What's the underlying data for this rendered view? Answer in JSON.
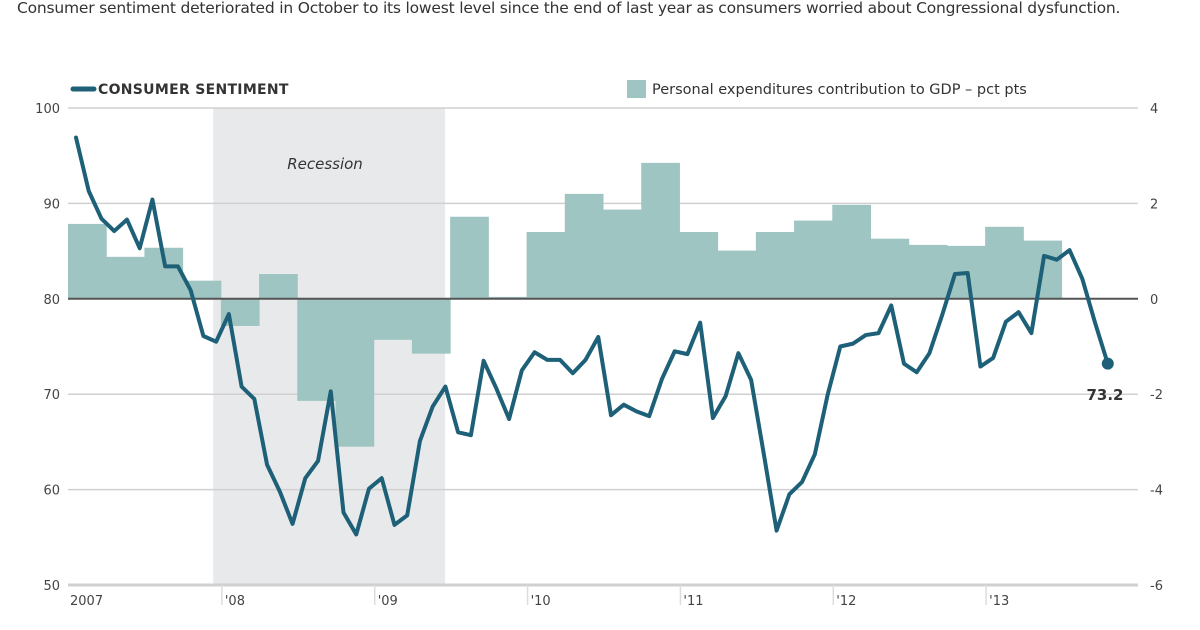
{
  "subtitle": "Consumer sentiment deteriorated in October to its lowest level since the end of last year as consumers worried about Congressional dysfunction.",
  "colors": {
    "line": "#1d6078",
    "bars": "#9ec5c1",
    "recession": "#e8e9eb",
    "grid": "#d0d0d0",
    "zero": "#555555"
  },
  "chart_data": {
    "type": "line+bar",
    "title": "",
    "legend": [
      {
        "name": "CONSUMER SENTIMENT",
        "marker": "line",
        "position": "top-left"
      },
      {
        "name": "Personal expenditures contribution to GDP – pct pts",
        "marker": "square",
        "position": "top-right"
      }
    ],
    "left_axis": {
      "label": "",
      "range": [
        50,
        100
      ],
      "ticks": [
        "100",
        "90",
        "80",
        "70",
        "60",
        "50"
      ]
    },
    "right_axis": {
      "label": "",
      "range": [
        -6,
        4
      ],
      "ticks": [
        "4",
        "2",
        "0",
        "-2",
        "-4",
        "-6"
      ]
    },
    "x_axis": {
      "range": [
        "2007-01",
        "2013-12"
      ],
      "tick_labels": [
        "2007",
        "'08",
        "'09",
        "'10",
        "'11",
        "'12",
        "'13"
      ]
    },
    "annotations": [
      {
        "text": "Recession",
        "span": [
          "2007-12",
          "2009-06"
        ]
      },
      {
        "text": "73.2",
        "at": "2013-10",
        "series": "CONSUMER SENTIMENT"
      }
    ],
    "grid": true,
    "series": [
      {
        "name": "CONSUMER SENTIMENT",
        "type": "line",
        "axis": "left",
        "frequency": "monthly",
        "start": "2007-01",
        "values": [
          96.9,
          91.3,
          88.4,
          87.1,
          88.3,
          85.3,
          90.4,
          83.4,
          83.4,
          80.9,
          76.1,
          75.5,
          78.4,
          70.8,
          69.5,
          62.6,
          59.8,
          56.4,
          61.2,
          63.0,
          70.3,
          57.6,
          55.3,
          60.1,
          61.2,
          56.3,
          57.3,
          65.1,
          68.7,
          70.8,
          66.0,
          65.7,
          73.5,
          70.6,
          67.4,
          72.5,
          74.4,
          73.6,
          73.6,
          72.2,
          73.6,
          76.0,
          67.8,
          68.9,
          68.2,
          67.7,
          71.6,
          74.5,
          74.2,
          77.5,
          67.5,
          69.8,
          74.3,
          71.5,
          63.7,
          55.7,
          59.5,
          60.8,
          63.7,
          69.9,
          75.0,
          75.3,
          76.2,
          76.4,
          79.3,
          73.2,
          72.3,
          74.3,
          78.3,
          82.6,
          82.7,
          72.9,
          73.8,
          77.6,
          78.6,
          76.4,
          84.5,
          84.1,
          85.1,
          82.1,
          77.5,
          73.2
        ]
      },
      {
        "name": "Personal expenditures contribution to GDP – pct pts",
        "type": "bar",
        "axis": "right",
        "frequency": "quarterly",
        "start": "2007-Q1",
        "values": [
          1.57,
          0.88,
          1.07,
          0.38,
          -0.57,
          0.52,
          -2.14,
          -3.1,
          -0.86,
          -1.15,
          1.72,
          0.04,
          1.4,
          2.2,
          1.87,
          2.85,
          1.4,
          1.01,
          1.4,
          1.64,
          1.97,
          1.26,
          1.13,
          1.11,
          1.51,
          1.22
        ]
      }
    ]
  }
}
